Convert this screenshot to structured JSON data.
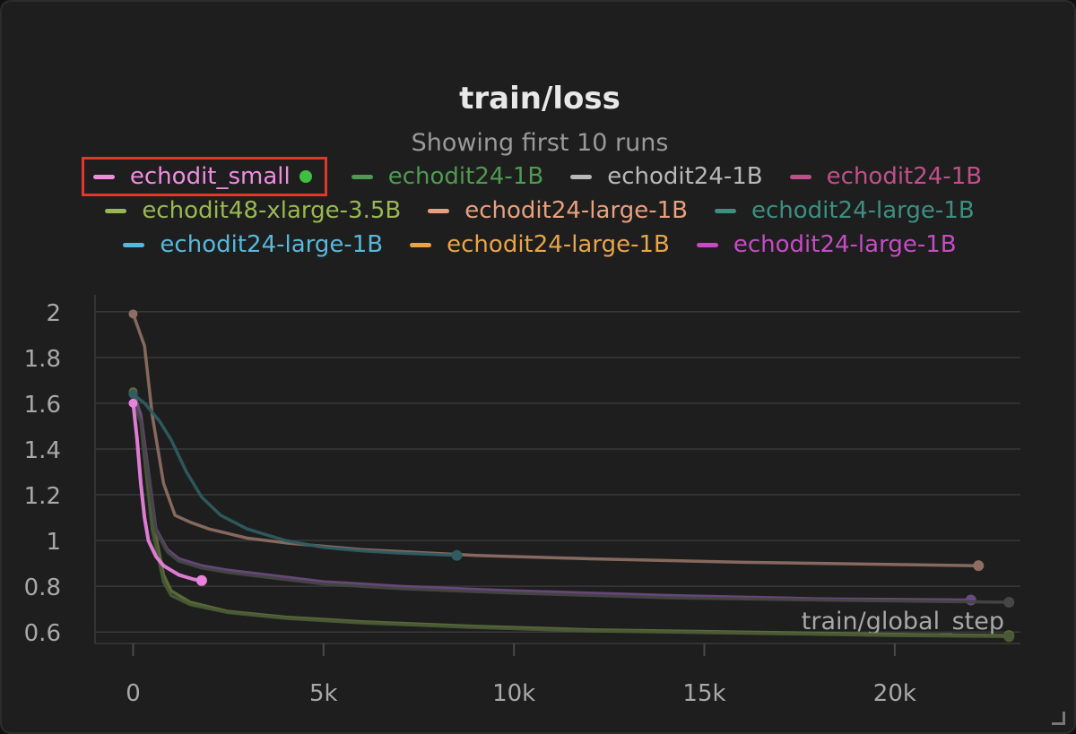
{
  "panel": {
    "title": "train/loss",
    "subtitle": "Showing first 10 runs"
  },
  "legend": {
    "rows": [
      [
        {
          "name": "echodit_small",
          "color": "#f08ce0",
          "highlighted": true,
          "active": true
        },
        {
          "name": "echodit24-1B",
          "color": "#4f9a52"
        },
        {
          "name": "echodit24-1B",
          "color": "#b8b8b8"
        },
        {
          "name": "echodit24-1B",
          "color": "#c0508a"
        }
      ],
      [
        {
          "name": "echodit48-xlarge-3.5B",
          "color": "#9ab852"
        },
        {
          "name": "echodit24-large-1B",
          "color": "#e8a07e"
        },
        {
          "name": "echodit24-large-1B",
          "color": "#3d8f82"
        }
      ],
      [
        {
          "name": "echodit24-large-1B",
          "color": "#58b8dc"
        },
        {
          "name": "echodit24-large-1B",
          "color": "#e8a448"
        },
        {
          "name": "echodit24-large-1B",
          "color": "#c44cc4"
        }
      ]
    ],
    "highlight_color": "#e0392b",
    "active_dot_color": "#3fbf3f"
  },
  "chart_data": {
    "type": "line",
    "title": "train/loss",
    "xlabel": "train/global_step",
    "ylabel": "",
    "xlim": [
      -1000,
      23300
    ],
    "ylim": [
      0.55,
      2.05
    ],
    "x_ticks": [
      0,
      5000,
      10000,
      15000,
      20000
    ],
    "x_tick_labels": [
      "0",
      "5k",
      "10k",
      "15k",
      "20k"
    ],
    "y_ticks": [
      0.6,
      0.8,
      1,
      1.2,
      1.4,
      1.6,
      1.8,
      2
    ],
    "y_tick_labels": [
      "0.6",
      "0.8",
      "1",
      "1.2",
      "1.4",
      "1.6",
      "1.8",
      "2"
    ],
    "grid": true,
    "series": [
      {
        "color": "#5e6e3a",
        "x": [
          0,
          200,
          500,
          800,
          1000,
          1500,
          2500,
          4000,
          6000,
          9000,
          12000,
          16000,
          20000,
          23000
        ],
        "y": [
          1.65,
          1.55,
          1.1,
          0.85,
          0.78,
          0.73,
          0.69,
          0.665,
          0.645,
          0.625,
          0.61,
          0.6,
          0.59,
          0.585
        ]
      },
      {
        "color": "#4a5a36",
        "x": [
          0,
          200,
          500,
          800,
          1000,
          1500,
          2500,
          4000,
          6000,
          9000,
          12000,
          16000,
          20000,
          23000
        ],
        "y": [
          1.64,
          1.52,
          1.05,
          0.82,
          0.76,
          0.72,
          0.685,
          0.66,
          0.64,
          0.62,
          0.605,
          0.595,
          0.585,
          0.58
        ]
      },
      {
        "color": "#8c6e62",
        "x": [
          0,
          300,
          500,
          800,
          1100,
          1500,
          2000,
          3000,
          4000,
          6000,
          9000,
          12000,
          16000,
          20000,
          22200
        ],
        "y": [
          1.99,
          1.85,
          1.55,
          1.25,
          1.11,
          1.08,
          1.05,
          1.01,
          0.99,
          0.96,
          0.935,
          0.92,
          0.905,
          0.895,
          0.89
        ]
      },
      {
        "color": "#6b4a80",
        "x": [
          0,
          200,
          400,
          600,
          900,
          1200,
          1800,
          2500,
          3500,
          5000,
          7000,
          10000,
          14000,
          18000,
          22000
        ],
        "y": [
          1.64,
          1.55,
          1.3,
          1.05,
          0.96,
          0.92,
          0.89,
          0.87,
          0.85,
          0.82,
          0.8,
          0.78,
          0.76,
          0.745,
          0.74
        ]
      },
      {
        "color": "#464646",
        "x": [
          0,
          200,
          400,
          600,
          900,
          1200,
          1800,
          2500,
          3500,
          5000,
          7000,
          10000,
          14000,
          18000,
          23000
        ],
        "y": [
          1.6,
          1.52,
          1.28,
          1.04,
          0.95,
          0.91,
          0.88,
          0.86,
          0.84,
          0.81,
          0.79,
          0.77,
          0.75,
          0.74,
          0.73
        ]
      },
      {
        "color": "#2e5c60",
        "x": [
          0,
          300,
          700,
          1000,
          1400,
          1800,
          2300,
          3000,
          4000,
          5000,
          6000,
          7000,
          8500
        ],
        "y": [
          1.64,
          1.6,
          1.52,
          1.44,
          1.3,
          1.19,
          1.11,
          1.05,
          1.0,
          0.97,
          0.955,
          0.945,
          0.935
        ]
      },
      {
        "color": "#e882dc",
        "x": [
          0,
          100,
          200,
          300,
          400,
          600,
          800,
          1000,
          1200,
          1400,
          1600,
          1800
        ],
        "y": [
          1.6,
          1.45,
          1.25,
          1.1,
          1.0,
          0.93,
          0.89,
          0.87,
          0.85,
          0.84,
          0.83,
          0.825
        ]
      }
    ]
  }
}
